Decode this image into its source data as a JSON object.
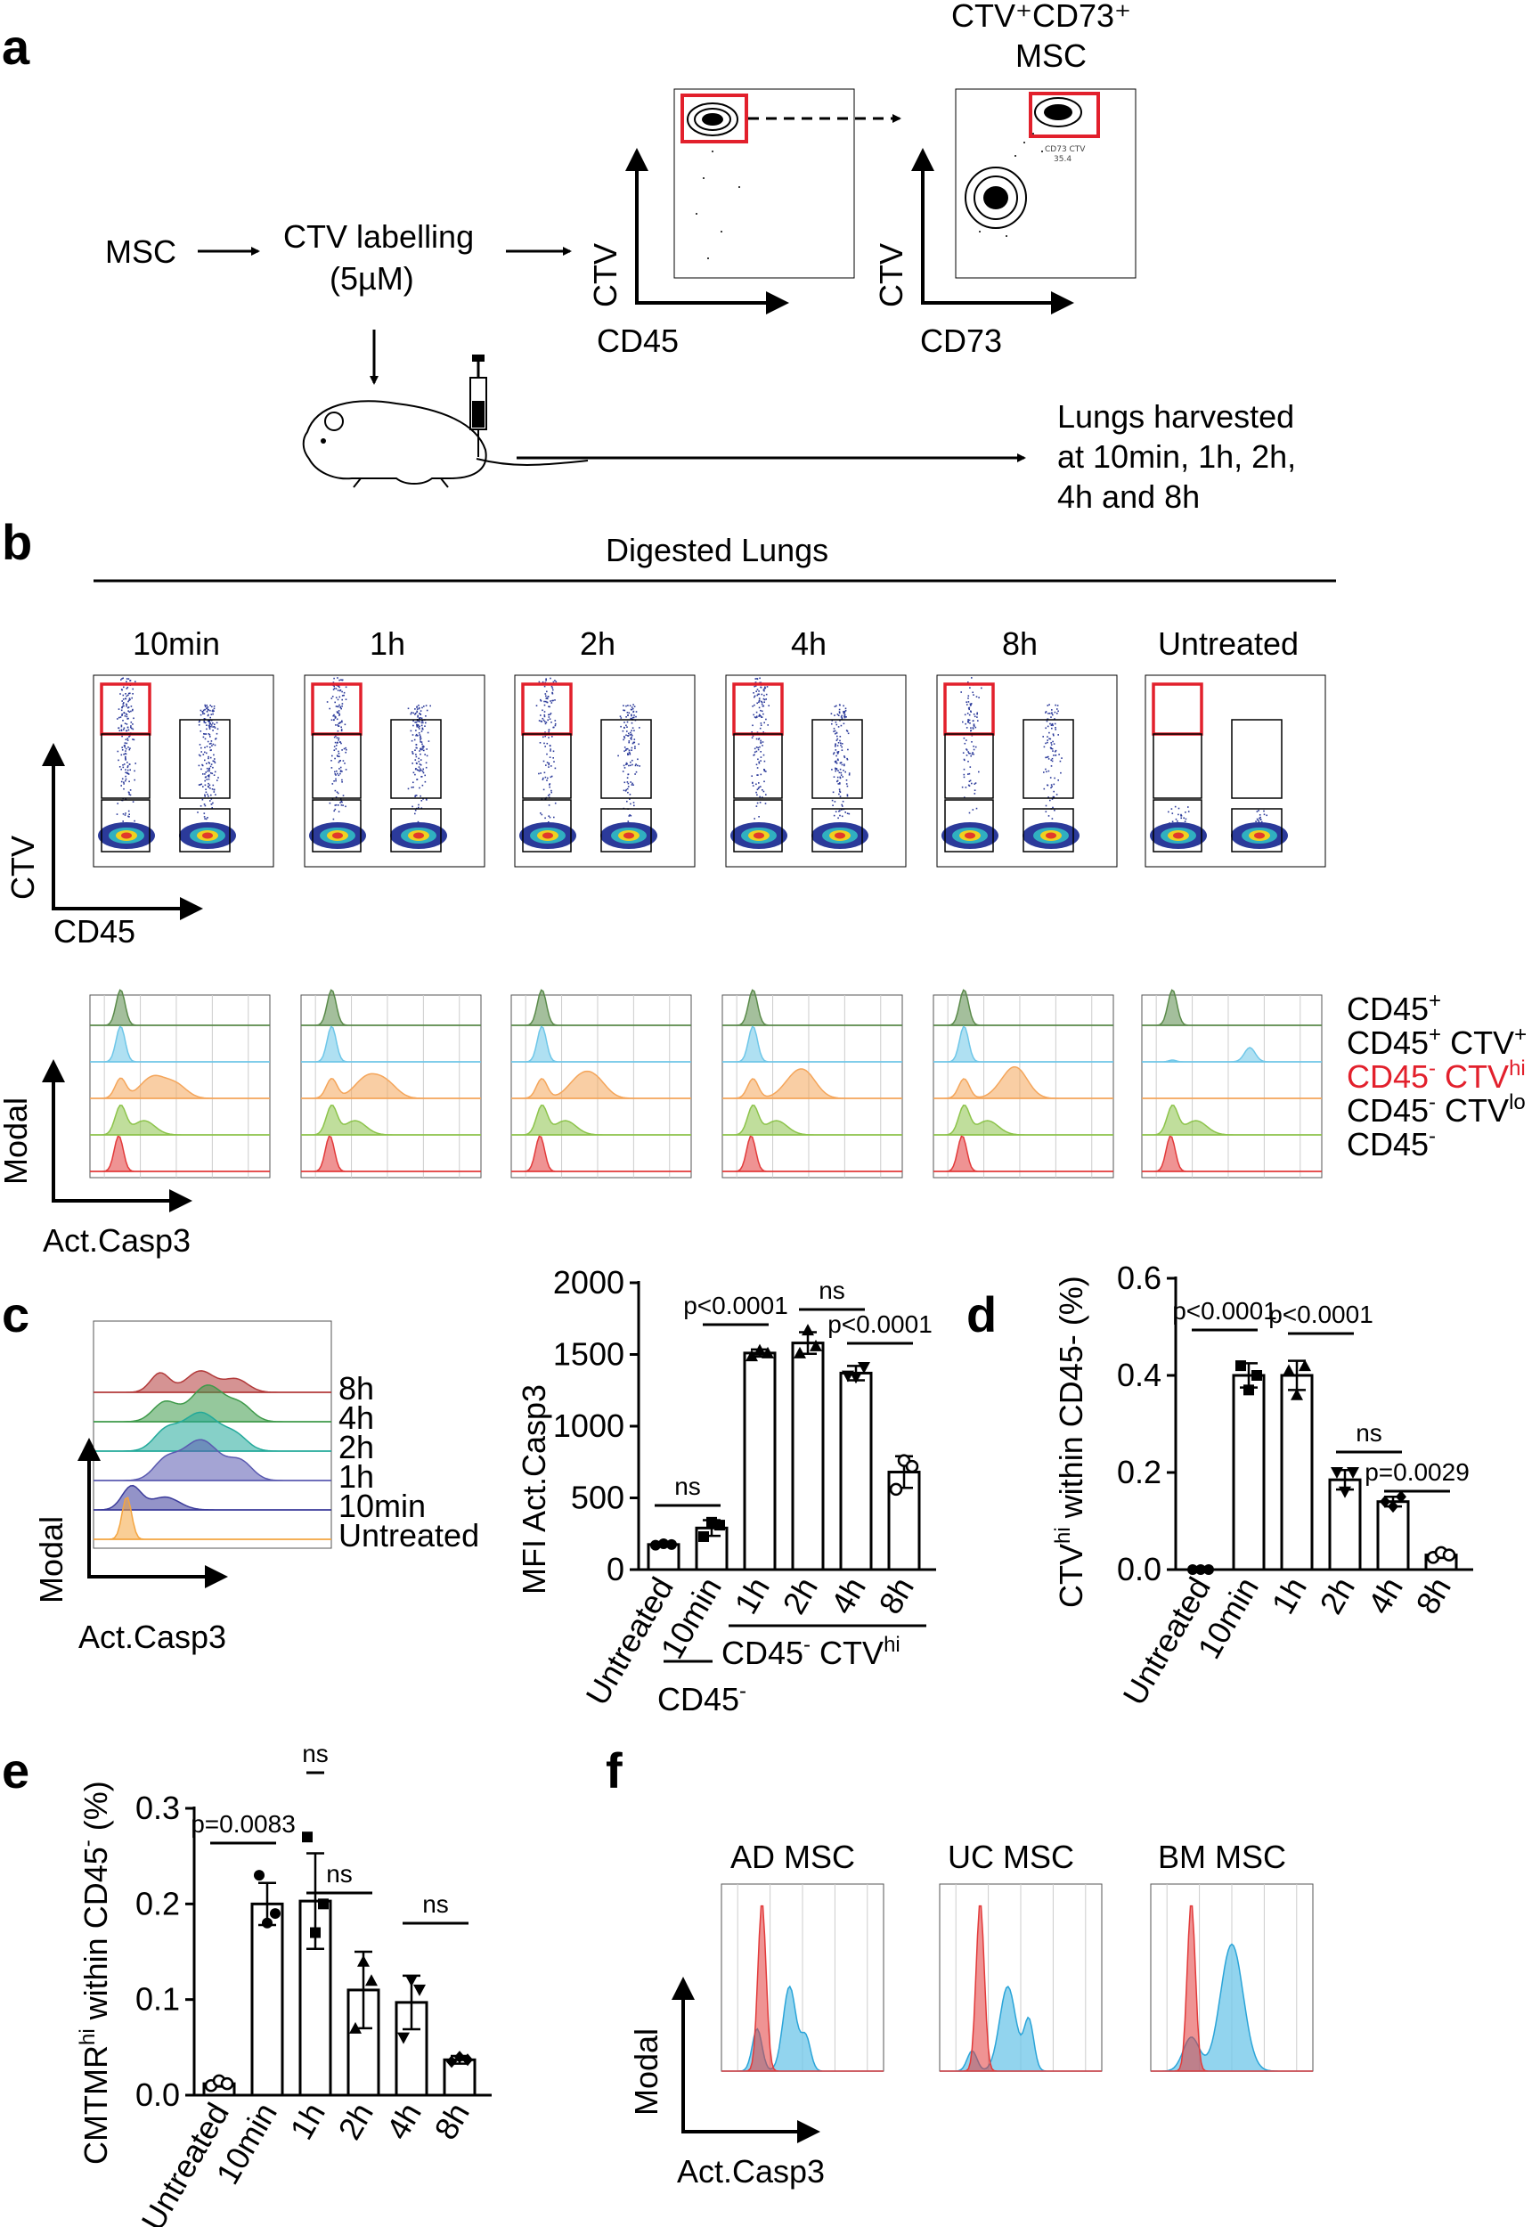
{
  "panel_labels": {
    "a": "a",
    "b": "b",
    "c": "c",
    "d": "d",
    "e": "e",
    "f": "f"
  },
  "panel_a": {
    "msc": "MSC",
    "labelling_line1": "CTV labelling",
    "labelling_line2": "(5µM)",
    "plot1_x": "CD45",
    "plot1_y": "CTV",
    "plot2_x": "CD73",
    "plot2_y": "CTV",
    "gate_title_line1": "CTV⁺CD73⁺",
    "gate_title_line2": "MSC",
    "gate_name": "CD73 CTV",
    "gate_value": "35.4",
    "harvest_line1": "Lungs harvested",
    "harvest_line2": "at 10min, 1h, 2h,",
    "harvest_line3": "4h and 8h"
  },
  "panel_b": {
    "title": "Digested Lungs",
    "timepoints": [
      "10min",
      "1h",
      "2h",
      "4h",
      "8h",
      "Untreated"
    ],
    "dot_x": "CD45",
    "dot_y": "CTV",
    "hist_x": "Act.Casp3",
    "hist_y": "Modal",
    "legend": [
      {
        "main": "CD45",
        "sup": "+",
        "main2": "",
        "sup2": "",
        "color": "#000000"
      },
      {
        "main": "CD45",
        "sup": "+",
        "main2": " CTV",
        "sup2": "+",
        "color": "#000000"
      },
      {
        "main": "CD45",
        "sup": "-",
        "main2": " CTV",
        "sup2": "hi",
        "color": "#e2202c"
      },
      {
        "main": "CD45",
        "sup": "-",
        "main2": " CTV",
        "sup2": "lo",
        "color": "#000000"
      },
      {
        "main": "CD45",
        "sup": "-",
        "main2": "",
        "sup2": "",
        "color": "#000000"
      }
    ],
    "colors": {
      "cd45pos": "#5a8a4a",
      "cd45pos_ctv": "#6ec6e8",
      "ctvhi": "#f4a55a",
      "ctvlo": "#8cc34a",
      "cd45neg": "#e23a3a"
    }
  },
  "panel_c_hist": {
    "labels": [
      "8h",
      "4h",
      "2h",
      "1h",
      "10min",
      "Untreated"
    ],
    "colors": [
      "#b23a3a",
      "#3e9a4a",
      "#22a99a",
      "#5a5ab0",
      "#3a3a9a",
      "#f4a540"
    ],
    "x": "Act.Casp3",
    "y": "Modal"
  },
  "panel_c_bar": {
    "ylabel": "MFI Act.Casp3",
    "group_labels": {
      "cd45neg": "CD45",
      "cd45neg_sup": "-",
      "ctvhi_a": "CD45",
      "ctvhi_sup1": "-",
      "ctvhi_b": " CTV",
      "ctvhi_sup2": "hi"
    },
    "sig": [
      "ns",
      "p<0.0001",
      "ns",
      "p<0.0001"
    ]
  },
  "panel_d": {
    "ylabel_a": "CTV",
    "ylabel_sup": "hi",
    "ylabel_b": " within CD45- (%)",
    "sig": [
      "p<0.0001",
      "p<0.0001",
      "ns",
      "p=0.0029"
    ]
  },
  "panel_e": {
    "ylabel_a": "CMTMR",
    "ylabel_sup": "hi",
    "ylabel_b": " within CD45",
    "ylabel_sup2": "-",
    "ylabel_c": " (%)",
    "sig": [
      "p=0.0083",
      "ns",
      "ns",
      "ns"
    ]
  },
  "panel_f": {
    "titles": [
      "AD MSC",
      "UC MSC",
      "BM MSC"
    ],
    "x": "Act.Casp3",
    "y": "Modal"
  },
  "chart_data": [
    {
      "type": "bar",
      "categories": [
        "Untreated",
        "10min",
        "1h",
        "2h",
        "4h",
        "8h"
      ],
      "values": [
        175,
        290,
        1510,
        1580,
        1370,
        680
      ],
      "ylabel": "MFI Act.Casp3",
      "ylim": [
        0,
        2000
      ],
      "yticks": [
        0,
        500,
        1000,
        1500,
        2000
      ]
    },
    {
      "type": "bar",
      "categories": [
        "Untreated",
        "10min",
        "1h",
        "2h",
        "4h",
        "8h"
      ],
      "values": [
        0.0,
        0.4,
        0.4,
        0.185,
        0.14,
        0.03
      ],
      "ylabel": "CTVhi within CD45- (%)",
      "ylim": [
        0,
        0.6
      ],
      "yticks": [
        "0.0",
        "0.2",
        "0.4",
        "0.6"
      ]
    },
    {
      "type": "bar",
      "categories": [
        "Untreated",
        "10min",
        "1h",
        "2h",
        "4h",
        "8h"
      ],
      "values": [
        0.012,
        0.2,
        0.203,
        0.11,
        0.097,
        0.037
      ],
      "ylabel": "CMTMRhi within CD45- (%)",
      "ylim": [
        0,
        0.3
      ],
      "yticks": [
        "0.0",
        "0.1",
        "0.2",
        "0.3"
      ]
    }
  ]
}
